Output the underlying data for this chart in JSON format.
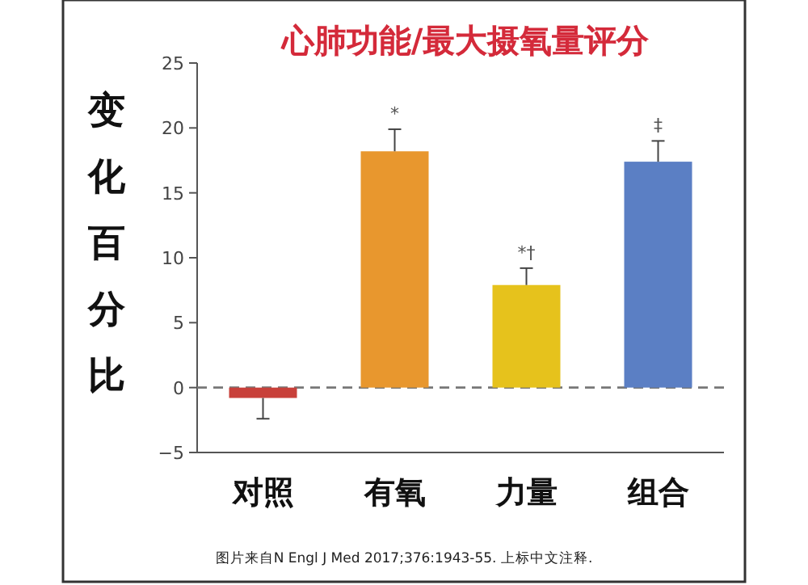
{
  "chart_data": {
    "type": "bar",
    "title": "心肺功能/最大摄氧量评分",
    "ylabel": "变化百分比",
    "categories": [
      "对照",
      "有氧",
      "力量",
      "组合"
    ],
    "values": [
      -0.8,
      18.2,
      7.9,
      17.4
    ],
    "colors": [
      "#c8403a",
      "#e8972e",
      "#e6c21c",
      "#5b7fc4"
    ],
    "errors": [
      [
        -2.4,
        -0.8
      ],
      [
        18.2,
        19.9
      ],
      [
        7.9,
        9.2
      ],
      [
        17.4,
        19.0
      ]
    ],
    "ylim": [
      -5,
      25
    ],
    "yticks": [
      -5,
      0,
      5,
      10,
      15,
      20,
      25
    ],
    "ref_lines": [
      {
        "axis": "y",
        "value": 0,
        "color": "#777777",
        "line_style": "dashed"
      }
    ],
    "annotations": [
      {
        "text": "*",
        "x": "有氧",
        "y": 19.9
      },
      {
        "text": "*†",
        "x": "力量",
        "y": 9.2
      },
      {
        "text": "‡",
        "x": "组合",
        "y": 19.0
      },
      "图片来自N Engl J Med 2017;376:1943-55. 上标中文注释."
    ]
  }
}
